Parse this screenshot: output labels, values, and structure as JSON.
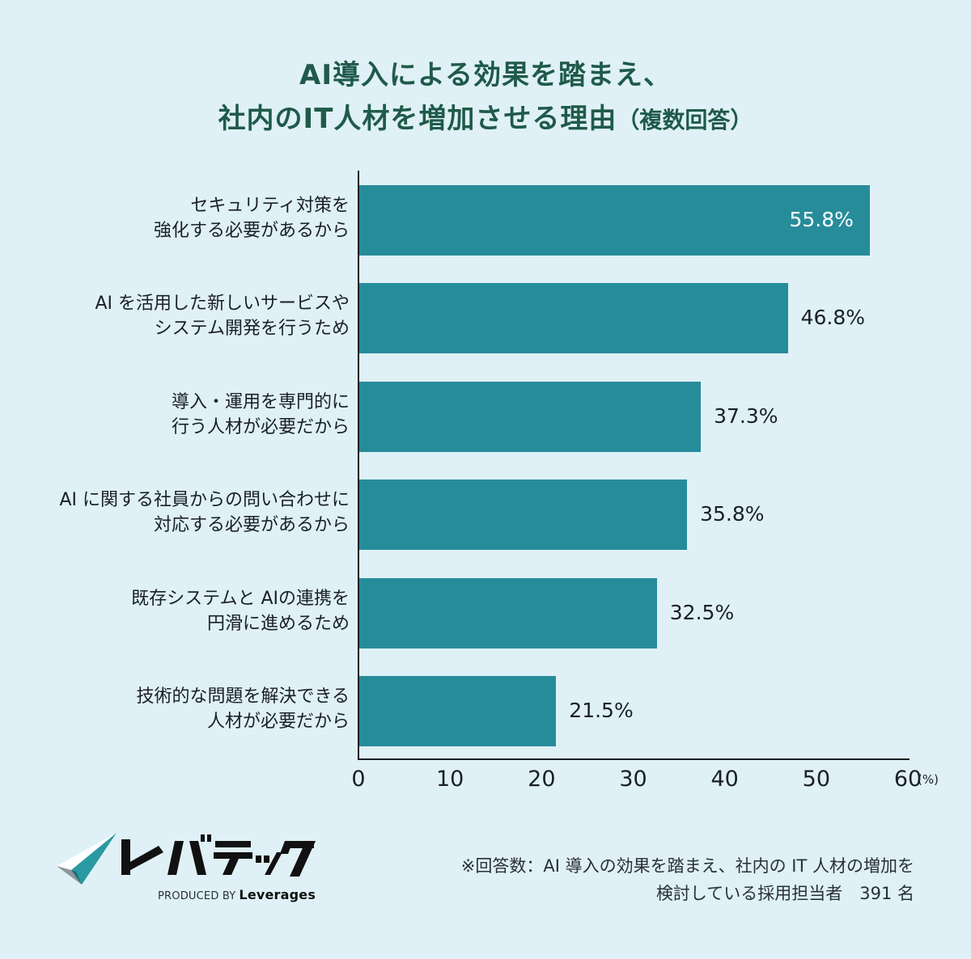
{
  "title": {
    "line1": "AI導入による効果を踏まえ、",
    "line2": "社内のIT人材を増加させる理由",
    "note": "（複数回答）"
  },
  "colors": {
    "background": "#dff1f6",
    "title": "#1f5a4a",
    "bar": "#268c9a",
    "text": "#1b1f26"
  },
  "axis": {
    "ticks": [
      "0",
      "10",
      "20",
      "30",
      "40",
      "50",
      "60"
    ],
    "unit": "(%)"
  },
  "bars": [
    {
      "line1": "セキュリティ対策を",
      "line2": "強化する必要があるから",
      "value_label": "55.8%"
    },
    {
      "line1": "AI を活用した新しいサービスや",
      "line2": "システム開発を行うため",
      "value_label": "46.8%"
    },
    {
      "line1": "導入・運用を専門的に",
      "line2": "行う人材が必要だから",
      "value_label": "37.3%"
    },
    {
      "line1": "AI に関する社員からの問い合わせに",
      "line2": "対応する必要があるから",
      "value_label": "35.8%"
    },
    {
      "line1": "既存システムと AIの連携を",
      "line2": "円滑に進めるため",
      "value_label": "32.5%"
    },
    {
      "line1": "技術的な問題を解決できる",
      "line2": "人材が必要だから",
      "value_label": "21.5%"
    }
  ],
  "brand": {
    "wordmark": "レバテック",
    "produced_by": "PRODUCED BY",
    "company": "Leverages"
  },
  "footnote": {
    "line1": "※回答数：AI 導入の効果を踏まえ、社内の IT 人材の増加を",
    "line2": "検討している採用担当者　391 名"
  },
  "chart_data": {
    "type": "bar",
    "orientation": "horizontal",
    "title": "AI導入による効果を踏まえ、社内のIT人材を増加させる理由（複数回答）",
    "categories": [
      "セキュリティ対策を強化する必要があるから",
      "AI を活用した新しいサービスやシステム開発を行うため",
      "導入・運用を専門的に行う人材が必要だから",
      "AI に関する社員からの問い合わせに対応する必要があるから",
      "既存システムと AIの連携を円滑に進めるため",
      "技術的な問題を解決できる人材が必要だから"
    ],
    "values": [
      55.8,
      46.8,
      37.3,
      35.8,
      32.5,
      21.5
    ],
    "xlabel": "(%)",
    "ylabel": "",
    "xlim": [
      0,
      60
    ],
    "xticks": [
      0,
      10,
      20,
      30,
      40,
      50,
      60
    ],
    "grid": false,
    "legend": null,
    "annotations": [
      "※回答数：AI 導入の効果を踏まえ、社内の IT 人材の増加を検討している採用担当者　391 名"
    ]
  }
}
